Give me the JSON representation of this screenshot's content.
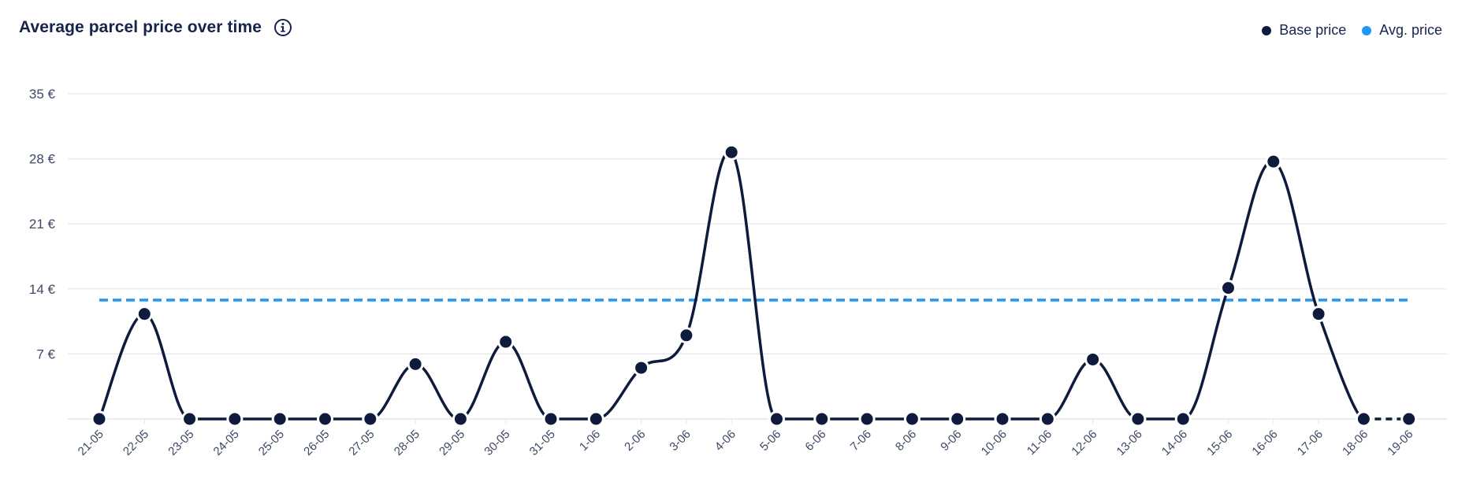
{
  "header": {
    "title": "Average parcel price over time",
    "info_icon": "info-icon"
  },
  "legend": [
    {
      "label": "Base price",
      "color": "#0f1b3d"
    },
    {
      "label": "Avg. price",
      "color": "#2196f3"
    }
  ],
  "chart_data": {
    "type": "line",
    "title": "Average parcel price over time",
    "xlabel": "",
    "ylabel": "",
    "categories": [
      "21-05",
      "22-05",
      "23-05",
      "24-05",
      "25-05",
      "26-05",
      "27-05",
      "28-05",
      "29-05",
      "30-05",
      "31-05",
      "1-06",
      "2-06",
      "3-06",
      "4-06",
      "5-06",
      "6-06",
      "7-06",
      "8-06",
      "9-06",
      "10-06",
      "11-06",
      "12-06",
      "13-06",
      "14-06",
      "15-06",
      "16-06",
      "17-06",
      "18-06",
      "19-06"
    ],
    "y_ticks": [
      {
        "value": 7,
        "label": "7 €"
      },
      {
        "value": 14,
        "label": "14 €"
      },
      {
        "value": 21,
        "label": "21 €"
      },
      {
        "value": 28,
        "label": "28 €"
      },
      {
        "value": 35,
        "label": "35 €"
      }
    ],
    "ylim": [
      0,
      35
    ],
    "grid": true,
    "legend_position": "top-right",
    "series": [
      {
        "name": "Base price",
        "color": "#0f1b3d",
        "values": [
          0,
          11.3,
          0,
          0,
          0,
          0,
          0,
          5.9,
          0,
          8.3,
          0,
          0,
          5.5,
          9,
          28.7,
          0,
          0,
          0,
          0,
          0,
          0,
          0,
          6.4,
          0,
          0,
          14.1,
          27.7,
          11.3,
          0,
          0
        ]
      },
      {
        "name": "Avg. price",
        "color": "#2196f3",
        "values": [
          12.8,
          12.8,
          12.8,
          12.8,
          12.8,
          12.8,
          12.8,
          12.8,
          12.8,
          12.8,
          12.8,
          12.8,
          12.8,
          12.8,
          12.8,
          12.8,
          12.8,
          12.8,
          12.8,
          12.8,
          12.8,
          12.8,
          12.8,
          12.8,
          12.8,
          12.8,
          12.8,
          12.8,
          12.8,
          12.8
        ]
      }
    ]
  }
}
